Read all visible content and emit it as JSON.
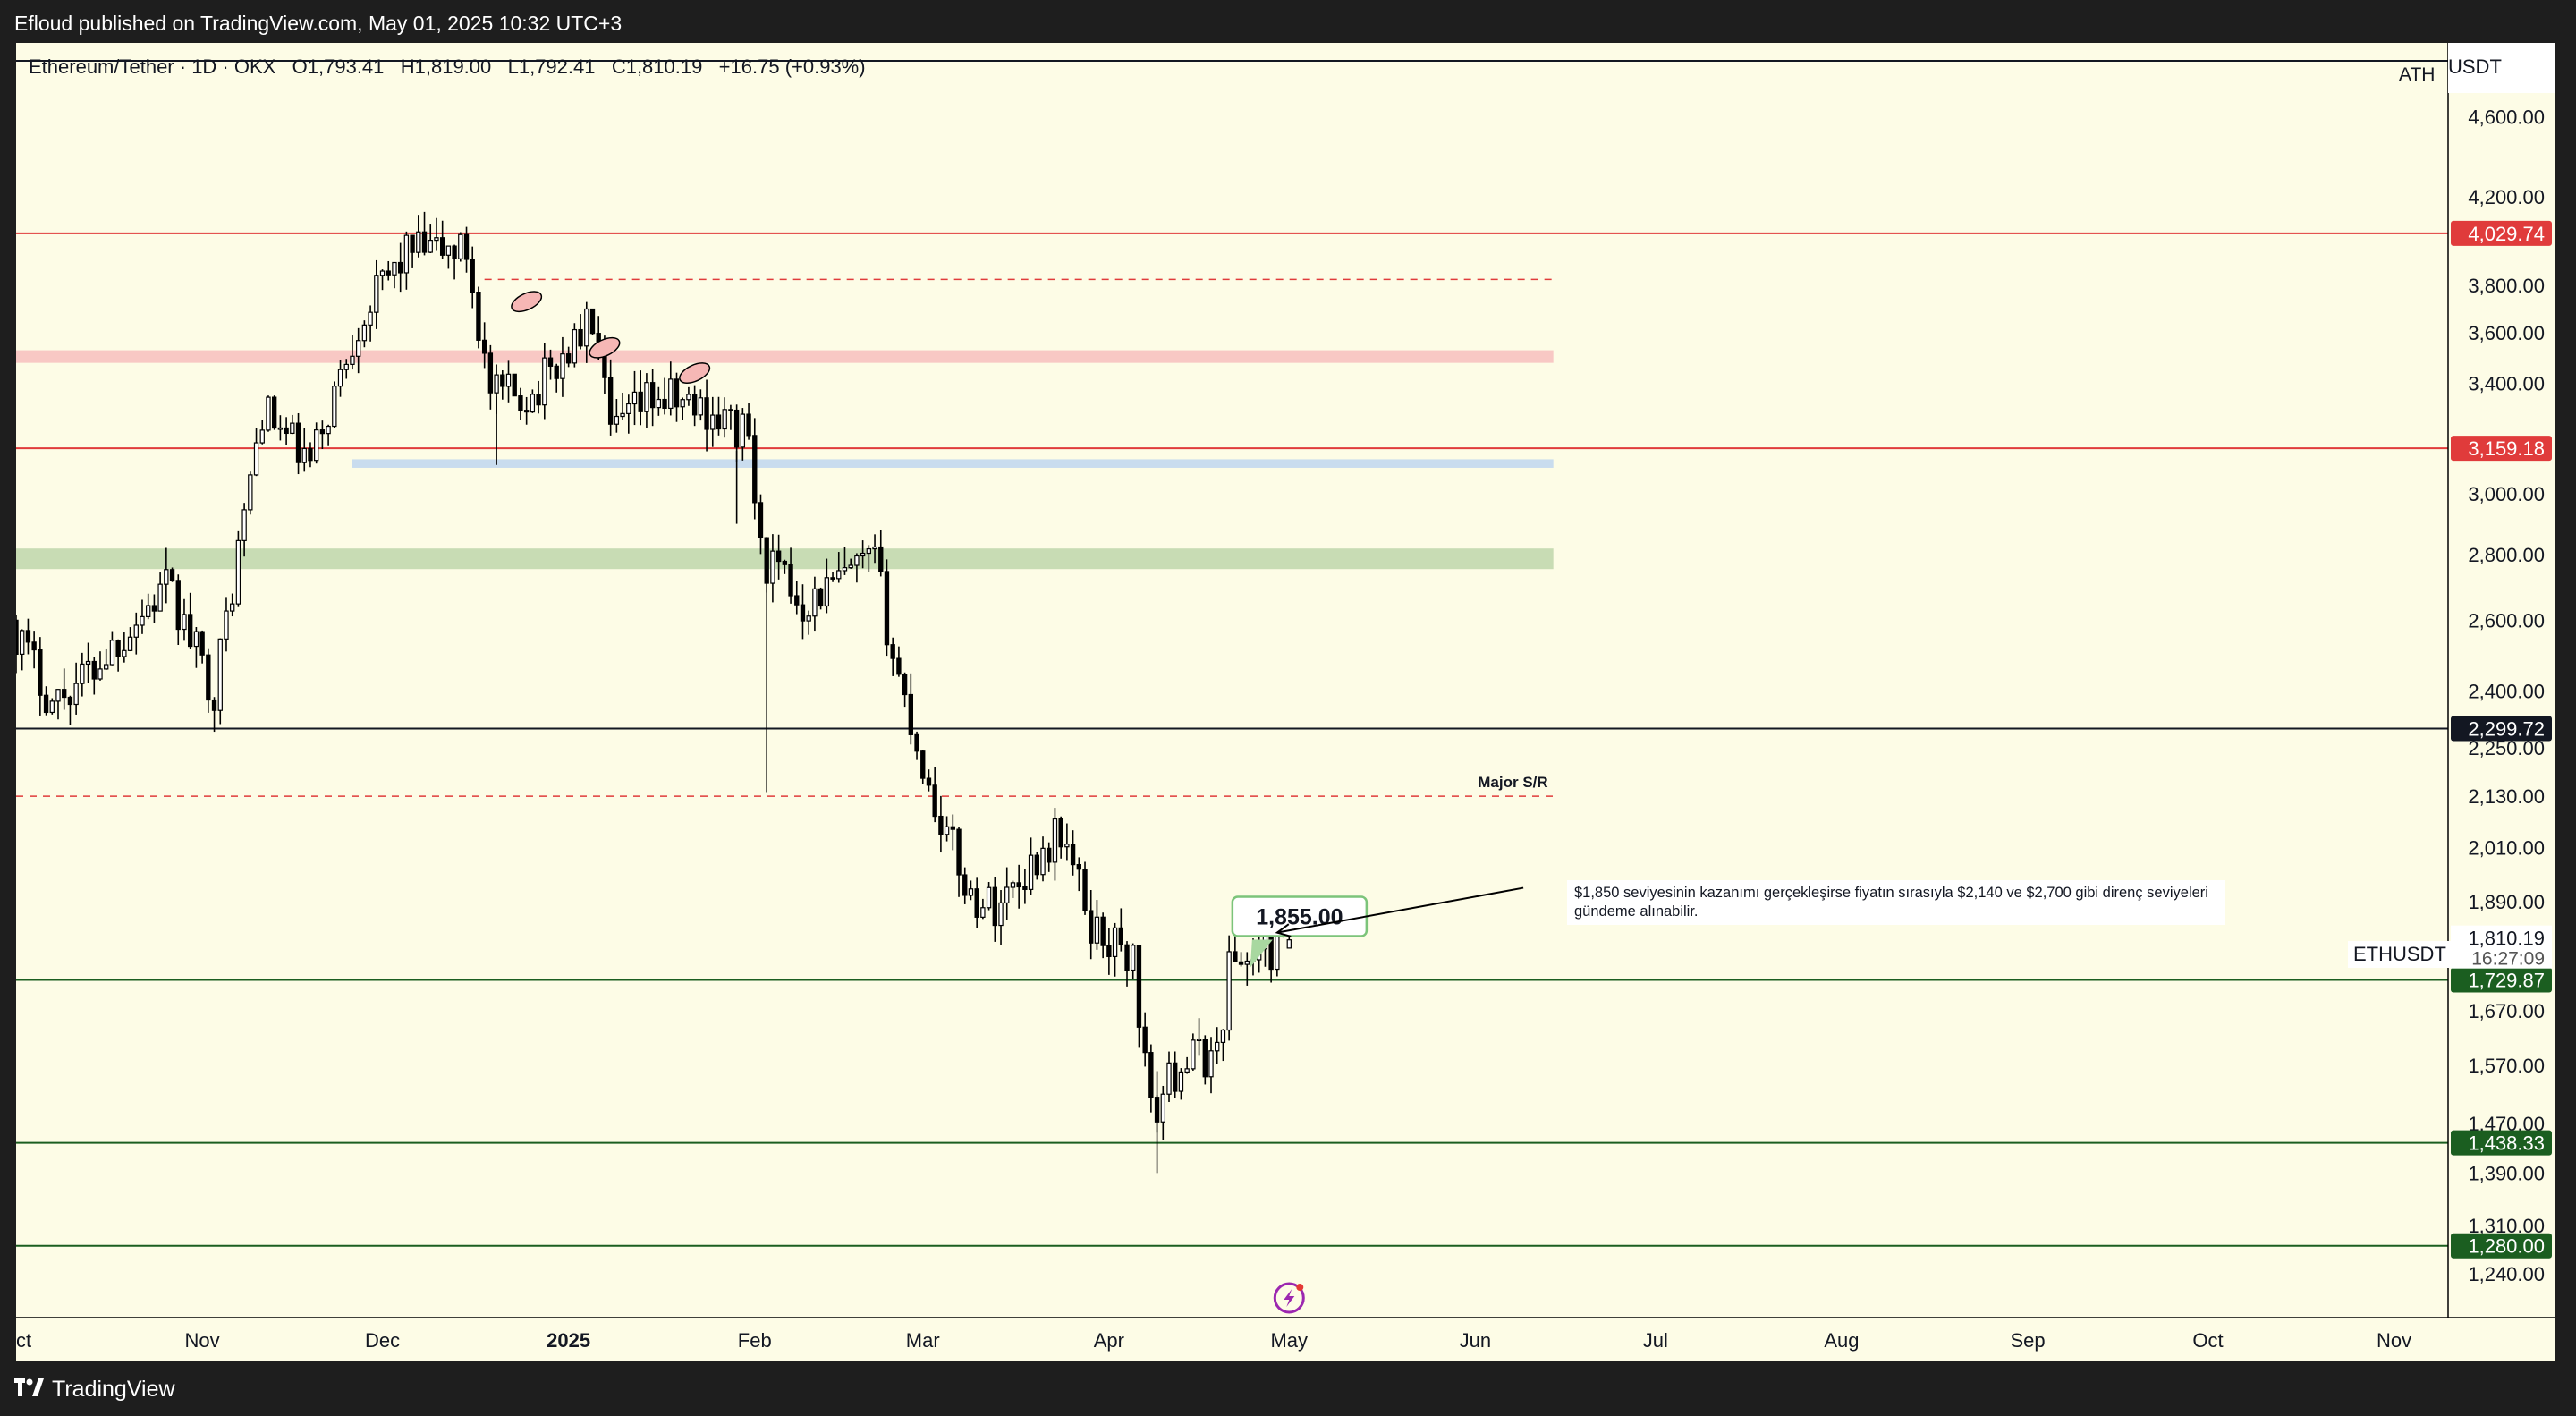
{
  "header": {
    "text": "Efloud published on TradingView.com, May 01, 2025 10:32 UTC+3"
  },
  "legend": {
    "text": "Ethereum/Tether · 1D · OKX   O1,793.41   H1,819.00   L1,792.41   C1,810.19   +16.75 (+0.93%)"
  },
  "footer": {
    "brand": "TradingView"
  },
  "ath_label": "ATH",
  "currency_label": "USDT",
  "symbol_tag": "ETHUSDT",
  "current_price": "1,810.19",
  "countdown": "16:27:09",
  "target_label": "1,855.00",
  "major_sr_label": "Major S/R",
  "note": "$1,850 seviyesinin kazanımı gerçekleşirse fiyatın sırasıyla $2,140 ve $2,700 gibi direnç seviyeleri gündeme alınabilir.",
  "colors": {
    "background": "#fdfce6",
    "frame": "#1e1e1e",
    "up": "#ffffff",
    "down": "#000000",
    "red": "#e03b3b",
    "green": "#1b5e20",
    "black": "#131722",
    "red_zone": "#f8c8c4",
    "blue_zone": "#c9dcee",
    "green_zone": "#c8dcb4"
  },
  "chart_data": {
    "type": "candlestick",
    "title": "Ethereum/Tether · 1D · OKX",
    "x_axis": {
      "type": "date",
      "range": [
        "2024-10-01",
        "2025-11-10"
      ],
      "ticks": [
        {
          "date": "2024-10-01",
          "label": "Oct"
        },
        {
          "date": "2024-11-01",
          "label": "Nov"
        },
        {
          "date": "2024-12-01",
          "label": "Dec"
        },
        {
          "date": "2025-01-01",
          "label": "2025"
        },
        {
          "date": "2025-02-01",
          "label": "Feb"
        },
        {
          "date": "2025-03-01",
          "label": "Mar"
        },
        {
          "date": "2025-04-01",
          "label": "Apr"
        },
        {
          "date": "2025-05-01",
          "label": "May"
        },
        {
          "date": "2025-06-01",
          "label": "Jun"
        },
        {
          "date": "2025-07-01",
          "label": "Jul"
        },
        {
          "date": "2025-08-01",
          "label": "Aug"
        },
        {
          "date": "2025-09-01",
          "label": "Sep"
        },
        {
          "date": "2025-10-01",
          "label": "Oct"
        },
        {
          "date": "2025-11-01",
          "label": "Nov"
        }
      ]
    },
    "y_axis": {
      "scale": "log",
      "range": [
        1180,
        5000
      ],
      "ticks": [
        "4,600.00",
        "4,200.00",
        "3,800.00",
        "3,600.00",
        "3,400.00",
        "3,000.00",
        "2,800.00",
        "2,600.00",
        "2,400.00",
        "2,250.00",
        "2,130.00",
        "2,010.00",
        "1,890.00",
        "1,670.00",
        "1,570.00",
        "1,470.00",
        "1,390.00",
        "1,310.00",
        "1,240.00"
      ]
    },
    "horizontal_levels": [
      {
        "price": 4029.74,
        "label": "4,029.74",
        "color": "red",
        "style": "solid"
      },
      {
        "price": 3159.18,
        "label": "3,159.18",
        "color": "red",
        "style": "solid"
      },
      {
        "price": 2299.72,
        "label": "2,299.72",
        "color": "black",
        "style": "solid"
      },
      {
        "price": 1729.87,
        "label": "1,729.87",
        "color": "green",
        "style": "solid"
      },
      {
        "price": 1438.33,
        "label": "1,438.33",
        "color": "green",
        "style": "solid"
      },
      {
        "price": 1280.0,
        "label": "1,280.00",
        "color": "green",
        "style": "solid"
      },
      {
        "price": 4900,
        "label": "",
        "color": "black",
        "style": "solid"
      }
    ],
    "dashed_levels": [
      {
        "price": 3825,
        "from": "2024-12-18",
        "to": "2025-06-14",
        "color": "red"
      },
      {
        "price": 2130,
        "from": "2024-10-01",
        "to": "2025-06-14",
        "color": "red",
        "label": "Major S/R"
      }
    ],
    "zones": [
      {
        "low": 3480,
        "high": 3530,
        "from": "2024-10-01",
        "to": "2025-06-14",
        "color": "red_zone"
      },
      {
        "low": 3090,
        "high": 3120,
        "from": "2024-11-26",
        "to": "2025-06-14",
        "color": "blue_zone"
      },
      {
        "low": 2755,
        "high": 2820,
        "from": "2024-10-01",
        "to": "2025-06-14",
        "color": "green_zone"
      }
    ],
    "marked_tops": [
      {
        "date": "2024-12-25",
        "price": 3730
      },
      {
        "date": "2025-01-07",
        "price": 3540
      },
      {
        "date": "2025-01-22",
        "price": 3440
      }
    ],
    "target": {
      "date": "2025-04-29",
      "price": 1855.0
    },
    "arrow": {
      "from_date": "2025-06-09",
      "from_price": 1920,
      "to_date": "2025-04-29",
      "to_price": 1825
    },
    "key_path": [
      [
        "2024-10-01",
        2600
      ],
      [
        "2024-10-08",
        2370
      ],
      [
        "2024-10-14",
        2450
      ],
      [
        "2024-10-27",
        2700
      ],
      [
        "2024-11-04",
        2400
      ],
      [
        "2024-11-12",
        3300
      ],
      [
        "2024-11-20",
        3100
      ],
      [
        "2024-11-28",
        3650
      ],
      [
        "2024-12-06",
        3950
      ],
      [
        "2024-12-16",
        3950
      ],
      [
        "2024-12-20",
        3350
      ],
      [
        "2024-12-27",
        3360
      ],
      [
        "2025-01-06",
        3650
      ],
      [
        "2025-01-09",
        3200
      ],
      [
        "2025-01-16",
        3350
      ],
      [
        "2025-01-25",
        3300
      ],
      [
        "2025-02-01",
        3200
      ],
      [
        "2025-02-03",
        2800
      ],
      [
        "2025-02-10",
        2650
      ],
      [
        "2025-02-22",
        2780
      ],
      [
        "2025-02-25",
        2500
      ],
      [
        "2025-03-03",
        2150
      ],
      [
        "2025-03-10",
        1900
      ],
      [
        "2025-03-14",
        1880
      ],
      [
        "2025-03-25",
        2050
      ],
      [
        "2025-03-30",
        1840
      ],
      [
        "2025-04-06",
        1770
      ],
      [
        "2025-04-09",
        1480
      ],
      [
        "2025-04-14",
        1580
      ],
      [
        "2025-04-20",
        1590
      ],
      [
        "2025-04-22",
        1760
      ],
      [
        "2025-04-30",
        1795
      ],
      [
        "2025-05-01",
        1810.19
      ]
    ],
    "last_candle": {
      "date": "2025-05-01",
      "open": 1793.41,
      "high": 1819.0,
      "low": 1792.41,
      "close": 1810.19,
      "change": "+16.75",
      "change_pct": "+0.93%"
    }
  }
}
